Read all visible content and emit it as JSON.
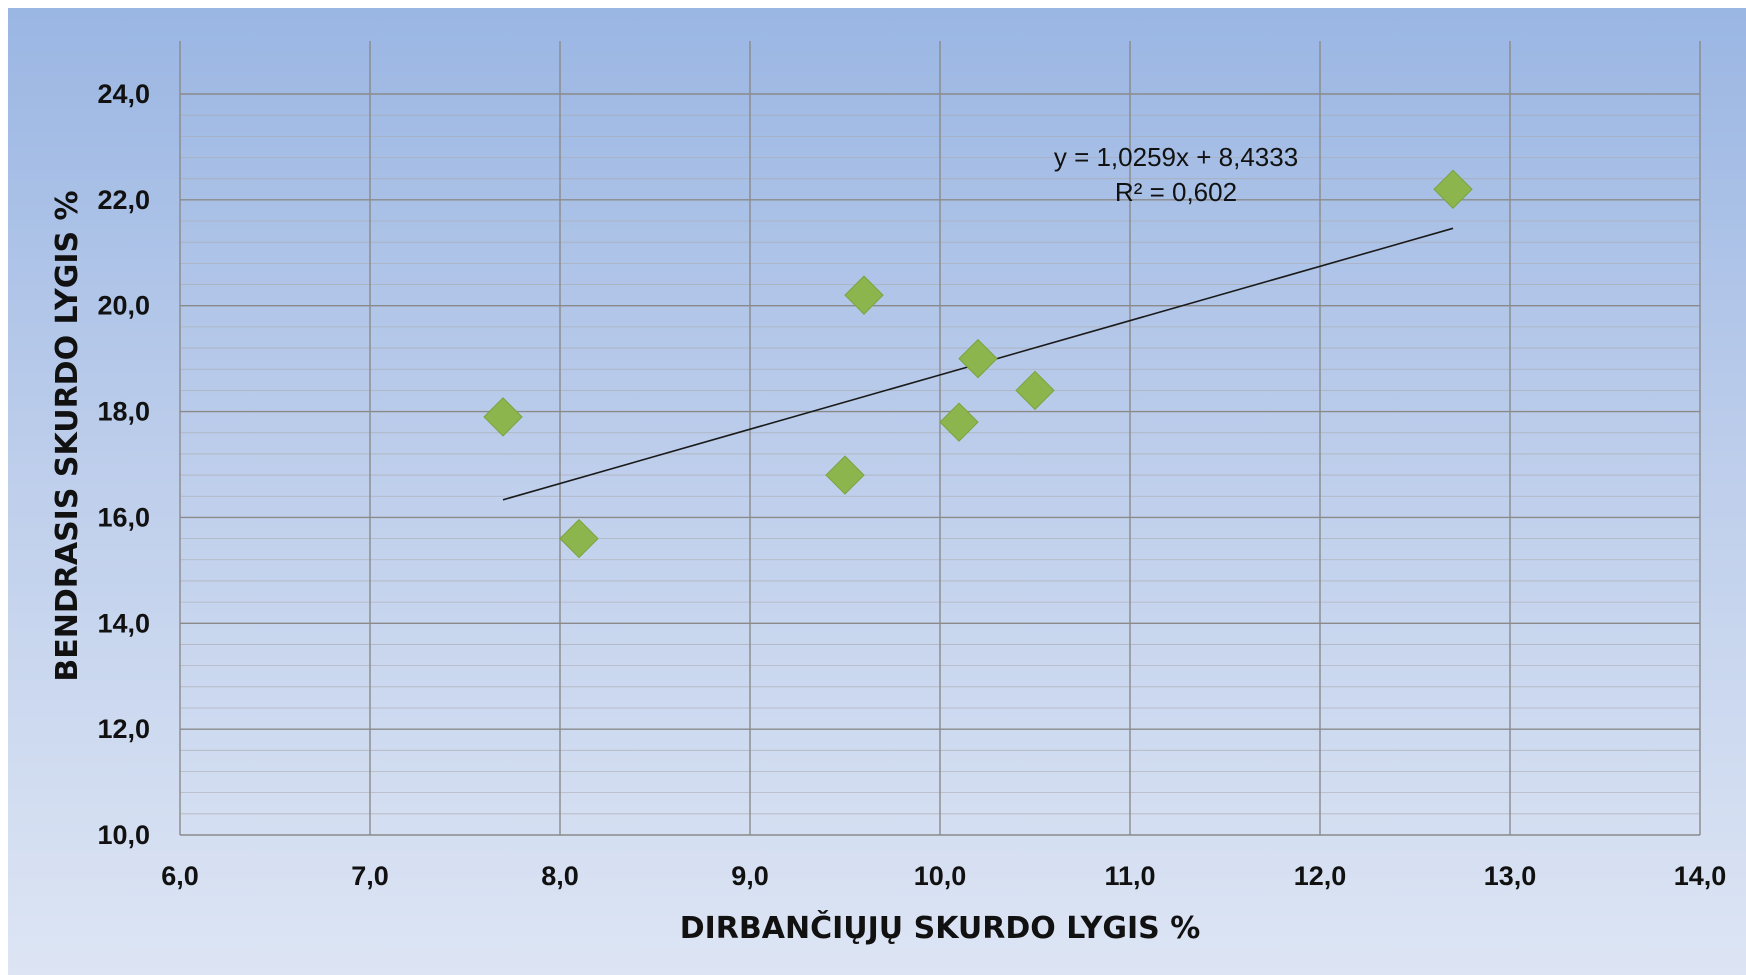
{
  "chart_data": {
    "type": "scatter",
    "xlabel": "DIRBANČIŲJŲ SKURDO LYGIS %",
    "ylabel": "BENDRASIS SKURDO LYGIS %",
    "xlim": [
      6.0,
      14.0
    ],
    "ylim": [
      10.0,
      24.0
    ],
    "x_ticks": [
      6,
      7,
      8,
      9,
      10,
      11,
      12,
      13,
      14
    ],
    "x_tick_labels": [
      "6,0",
      "7,0",
      "8,0",
      "9,0",
      "10,0",
      "11,0",
      "12,0",
      "13,0",
      "14,0"
    ],
    "y_ticks": [
      10,
      12,
      14,
      16,
      18,
      20,
      22,
      24
    ],
    "y_tick_labels": [
      "10,0",
      "12,0",
      "14,0",
      "16,0",
      "18,0",
      "20,0",
      "22,0",
      "24,0"
    ],
    "y_minor_step": 0.4,
    "grid": true,
    "marker": "diamond",
    "marker_color": "#8db54e",
    "points": [
      {
        "x": 7.7,
        "y": 17.9
      },
      {
        "x": 8.1,
        "y": 15.6
      },
      {
        "x": 9.5,
        "y": 16.8
      },
      {
        "x": 9.6,
        "y": 20.2
      },
      {
        "x": 10.1,
        "y": 17.8
      },
      {
        "x": 10.2,
        "y": 19.0
      },
      {
        "x": 10.5,
        "y": 18.4
      },
      {
        "x": 12.7,
        "y": 22.2
      }
    ],
    "trendline": {
      "type": "linear",
      "slope": 1.0259,
      "intercept": 8.4333,
      "x_range": [
        7.7,
        12.7
      ],
      "equation_label": "y = 1,0259x + 8,4333",
      "r2_label": "R² = 0,602"
    }
  }
}
